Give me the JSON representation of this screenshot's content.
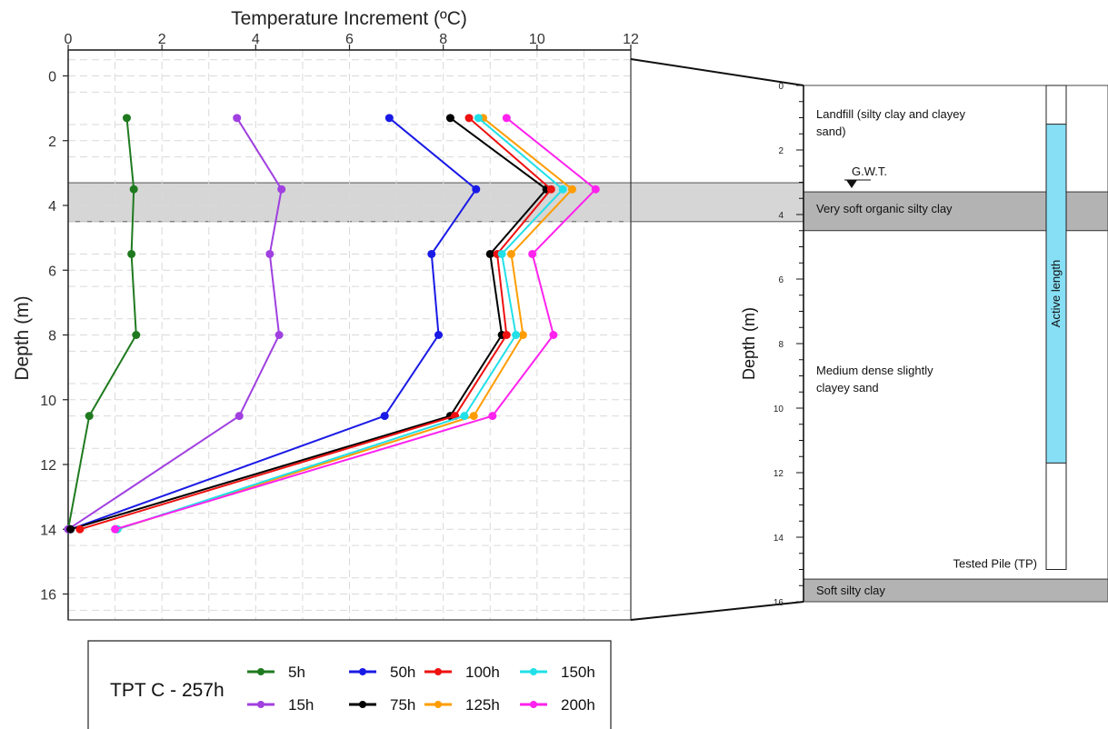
{
  "chart_data": {
    "type": "line",
    "xlabel": "Temperature Increment (ºC)",
    "ylabel": "Depth (m)",
    "xlim": [
      0,
      12
    ],
    "ylim": [
      16.8,
      -0.8
    ],
    "x_ticks": [
      0,
      2,
      4,
      6,
      8,
      10,
      12
    ],
    "y_ticks": [
      0,
      2,
      4,
      6,
      8,
      10,
      12,
      14,
      16
    ],
    "x_axis_position": "top",
    "grid": true,
    "depths": [
      1.3,
      3.5,
      5.5,
      8.0,
      10.5,
      14.0
    ],
    "highlight_band": {
      "from": 3.3,
      "to": 4.5
    },
    "series": [
      {
        "name": "5h",
        "color": "#1f7a1f",
        "values": [
          1.25,
          1.4,
          1.35,
          1.45,
          0.45,
          0.0
        ]
      },
      {
        "name": "15h",
        "color": "#a040e0",
        "values": [
          3.6,
          4.55,
          4.3,
          4.5,
          3.65,
          0.0
        ]
      },
      {
        "name": "50h",
        "color": "#1a1ae6",
        "values": [
          6.85,
          8.7,
          7.75,
          7.9,
          6.75,
          0.05
        ]
      },
      {
        "name": "75h",
        "color": "#000000",
        "values": [
          8.15,
          10.2,
          9.0,
          9.25,
          8.15,
          0.05
        ]
      },
      {
        "name": "100h",
        "color": "#ee1111",
        "values": [
          8.55,
          10.3,
          9.15,
          9.35,
          8.25,
          0.25
        ]
      },
      {
        "name": "125h",
        "color": "#ff9d00",
        "values": [
          8.85,
          10.75,
          9.45,
          9.7,
          8.65,
          1.05
        ]
      },
      {
        "name": "150h",
        "color": "#22e0e8",
        "values": [
          8.75,
          10.55,
          9.25,
          9.55,
          8.45,
          1.05
        ]
      },
      {
        "name": "200h",
        "color": "#ff22ee",
        "values": [
          9.35,
          11.25,
          9.9,
          10.35,
          9.05,
          1.0
        ]
      }
    ],
    "legend": {
      "title": "TPT C - 257h",
      "placement": "bottom-left"
    }
  },
  "profile": {
    "ylabel": "Depth (m)",
    "ylim": [
      0,
      16
    ],
    "y_ticks": [
      0,
      2,
      4,
      6,
      8,
      10,
      12,
      14,
      16
    ],
    "layers": [
      {
        "label": "Landfill (silty clay and clayey sand)",
        "line1": "Landfill (silty clay and clayey",
        "line2": "sand)",
        "from": 0,
        "to": 3.3,
        "fill": "#ffffff"
      },
      {
        "label": "Very soft organic silty clay",
        "from": 3.3,
        "to": 4.5,
        "fill": "#b3b3b3"
      },
      {
        "label": "Medium dense slightly clayey sand",
        "line1": "Medium dense slightly",
        "line2": "clayey sand",
        "from": 4.5,
        "to": 15.3,
        "fill": "#ffffff"
      },
      {
        "label": "Soft silty clay",
        "from": 15.3,
        "to": 16.0,
        "fill": "#b3b3b3"
      }
    ],
    "gwt_label": "G.W.T.",
    "gwt_depth": 3.1,
    "pile_label": "Tested Pile (TP)",
    "pile_from": 0,
    "pile_to": 15.0,
    "active_label": "Active length",
    "active_from": 1.2,
    "active_to": 11.7,
    "active_color": "#87dff5"
  }
}
